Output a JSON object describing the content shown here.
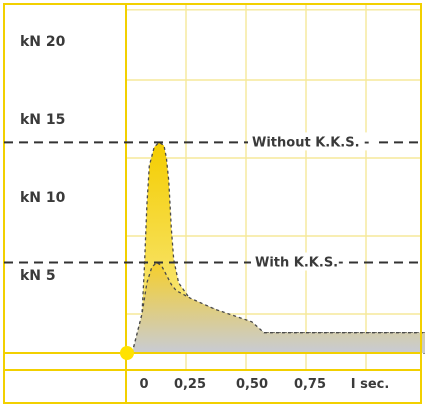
{
  "chart_data": {
    "type": "area",
    "y_unit": "kN",
    "x_unit": "sec.",
    "y_ticks": [
      {
        "value": 5,
        "label": "kN 5"
      },
      {
        "value": 10,
        "label": "kN 10"
      },
      {
        "value": 15,
        "label": "kN 15"
      },
      {
        "value": 20,
        "label": "kN 20"
      }
    ],
    "x_ticks": [
      {
        "value": 0,
        "label": "0"
      },
      {
        "value": 0.25,
        "label": "0,25"
      },
      {
        "value": 0.5,
        "label": "0,50"
      },
      {
        "value": 0.75,
        "label": "0,75"
      },
      {
        "value": 1,
        "label": "I sec."
      }
    ],
    "xlim": [
      -0.1,
      1.2
    ],
    "ylim": [
      -1,
      22
    ],
    "grid": true,
    "reference_lines": [
      {
        "value": 13.5,
        "label": "Without K.K.S. -"
      },
      {
        "value": 5.8,
        "label": "With K.K.S.-"
      }
    ],
    "series": [
      {
        "x": [
          -0.04,
          0.0,
          0.01,
          0.02,
          0.03,
          0.05,
          0.07,
          0.09,
          0.1,
          0.11,
          0.12,
          0.13,
          0.15,
          0.2,
          0.3,
          0.5,
          0.6,
          0.8,
          1.0,
          1.2
        ],
        "y": [
          0,
          2.5,
          5.5,
          9.5,
          12.0,
          13.2,
          13.5,
          13.3,
          12.5,
          11.0,
          8.0,
          6.0,
          4.5,
          3.4,
          2.8,
          1.3,
          1.3,
          1.3,
          1.3,
          1.3
        ]
      },
      {
        "x": [
          -0.04,
          0.0,
          0.02,
          0.04,
          0.06,
          0.08,
          0.1,
          0.12,
          0.14,
          0.2,
          0.3,
          0.45,
          0.5,
          0.6,
          0.8,
          1.0,
          1.2
        ],
        "y": [
          0,
          2.5,
          4.5,
          5.5,
          5.8,
          5.6,
          5.0,
          4.4,
          4.0,
          3.5,
          2.8,
          2.0,
          1.3,
          1.3,
          1.3,
          1.3,
          1.3
        ]
      }
    ],
    "colors": {
      "frame": "#f2d000",
      "grid": "#f6e89a",
      "peak_fill_top": "#f4cd00",
      "peak_fill_bottom": "#f9ed96",
      "area_fill_top": "#f6cf2a",
      "area_fill_bottom": "#c8cbd4",
      "outline": "#4a4a4a",
      "origin_dot": "#ffe200"
    }
  }
}
